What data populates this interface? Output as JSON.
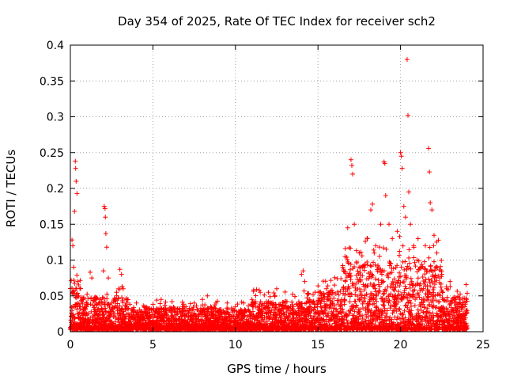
{
  "chart_data": {
    "type": "scatter",
    "title": "Day 354 of 2025, Rate Of TEC Index for receiver sch2",
    "xlabel": "GPS time / hours",
    "ylabel": "ROTI / TECUs",
    "xlim": [
      0,
      25
    ],
    "ylim": [
      0,
      0.4
    ],
    "xticks": [
      0,
      5,
      10,
      15,
      20,
      25
    ],
    "xtick_labels": [
      "0",
      "5",
      "10",
      "15",
      "20",
      "25"
    ],
    "yticks": [
      0,
      0.05,
      0.1,
      0.15,
      0.2,
      0.25,
      0.3,
      0.35,
      0.4
    ],
    "ytick_labels": [
      "0",
      "0.05",
      "0.1",
      "0.15",
      "0.2",
      "0.25",
      "0.3",
      "0.35",
      "0.4"
    ],
    "grid": true,
    "marker": "+",
    "color": "#ff0000",
    "series": [
      {
        "name": "ROTI",
        "points": [
          [
            0.05,
            0.013
          ],
          [
            0.1,
            0.128
          ],
          [
            0.15,
            0.12
          ],
          [
            0.2,
            0.09
          ],
          [
            0.25,
            0.168
          ],
          [
            0.3,
            0.238
          ],
          [
            0.32,
            0.228
          ],
          [
            0.35,
            0.21
          ],
          [
            0.4,
            0.193
          ],
          [
            0.45,
            0.07
          ],
          [
            0.5,
            0.05
          ],
          [
            0.6,
            0.035
          ],
          [
            0.8,
            0.03
          ],
          [
            1.0,
            0.04
          ],
          [
            1.2,
            0.083
          ],
          [
            1.3,
            0.075
          ],
          [
            1.5,
            0.03
          ],
          [
            1.8,
            0.045
          ],
          [
            2.0,
            0.085
          ],
          [
            2.05,
            0.175
          ],
          [
            2.1,
            0.172
          ],
          [
            2.12,
            0.16
          ],
          [
            2.15,
            0.137
          ],
          [
            2.2,
            0.118
          ],
          [
            2.3,
            0.075
          ],
          [
            2.5,
            0.04
          ],
          [
            2.8,
            0.055
          ],
          [
            3.0,
            0.087
          ],
          [
            3.1,
            0.08
          ],
          [
            3.2,
            0.06
          ],
          [
            3.5,
            0.025
          ],
          [
            3.8,
            0.02
          ],
          [
            4.0,
            0.04
          ],
          [
            4.5,
            0.035
          ],
          [
            5.0,
            0.03
          ],
          [
            5.5,
            0.045
          ],
          [
            6.0,
            0.03
          ],
          [
            6.5,
            0.025
          ],
          [
            7.0,
            0.035
          ],
          [
            7.5,
            0.04
          ],
          [
            8.0,
            0.045
          ],
          [
            8.3,
            0.05
          ],
          [
            8.5,
            0.035
          ],
          [
            9.0,
            0.03
          ],
          [
            9.5,
            0.04
          ],
          [
            10.0,
            0.035
          ],
          [
            10.5,
            0.04
          ],
          [
            11.0,
            0.045
          ],
          [
            11.5,
            0.055
          ],
          [
            12.0,
            0.055
          ],
          [
            12.5,
            0.06
          ],
          [
            13.0,
            0.04
          ],
          [
            13.5,
            0.035
          ],
          [
            14.0,
            0.08
          ],
          [
            14.1,
            0.085
          ],
          [
            14.2,
            0.07
          ],
          [
            14.5,
            0.045
          ],
          [
            15.0,
            0.055
          ],
          [
            15.5,
            0.06
          ],
          [
            16.0,
            0.065
          ],
          [
            16.5,
            0.09
          ],
          [
            16.8,
            0.145
          ],
          [
            17.0,
            0.24
          ],
          [
            17.05,
            0.232
          ],
          [
            17.1,
            0.22
          ],
          [
            17.2,
            0.15
          ],
          [
            17.5,
            0.11
          ],
          [
            17.8,
            0.09
          ],
          [
            18.0,
            0.13
          ],
          [
            18.2,
            0.17
          ],
          [
            18.3,
            0.178
          ],
          [
            18.5,
            0.12
          ],
          [
            18.8,
            0.15
          ],
          [
            19.0,
            0.237
          ],
          [
            19.05,
            0.235
          ],
          [
            19.1,
            0.19
          ],
          [
            19.3,
            0.15
          ],
          [
            19.5,
            0.13
          ],
          [
            19.8,
            0.14
          ],
          [
            20.0,
            0.25
          ],
          [
            20.05,
            0.245
          ],
          [
            20.1,
            0.228
          ],
          [
            20.2,
            0.175
          ],
          [
            20.3,
            0.16
          ],
          [
            20.4,
            0.38
          ],
          [
            20.45,
            0.302
          ],
          [
            20.5,
            0.195
          ],
          [
            20.6,
            0.15
          ],
          [
            20.8,
            0.12
          ],
          [
            21.0,
            0.1
          ],
          [
            21.3,
            0.09
          ],
          [
            21.5,
            0.12
          ],
          [
            21.7,
            0.256
          ],
          [
            21.75,
            0.223
          ],
          [
            21.8,
            0.18
          ],
          [
            21.9,
            0.17
          ],
          [
            22.0,
            0.12
          ],
          [
            22.2,
            0.11
          ],
          [
            22.5,
            0.08
          ],
          [
            22.8,
            0.06
          ],
          [
            23.0,
            0.07
          ],
          [
            23.3,
            0.045
          ],
          [
            23.6,
            0.04
          ],
          [
            23.8,
            0.035
          ],
          [
            24.0,
            0.03
          ]
        ]
      }
    ]
  }
}
